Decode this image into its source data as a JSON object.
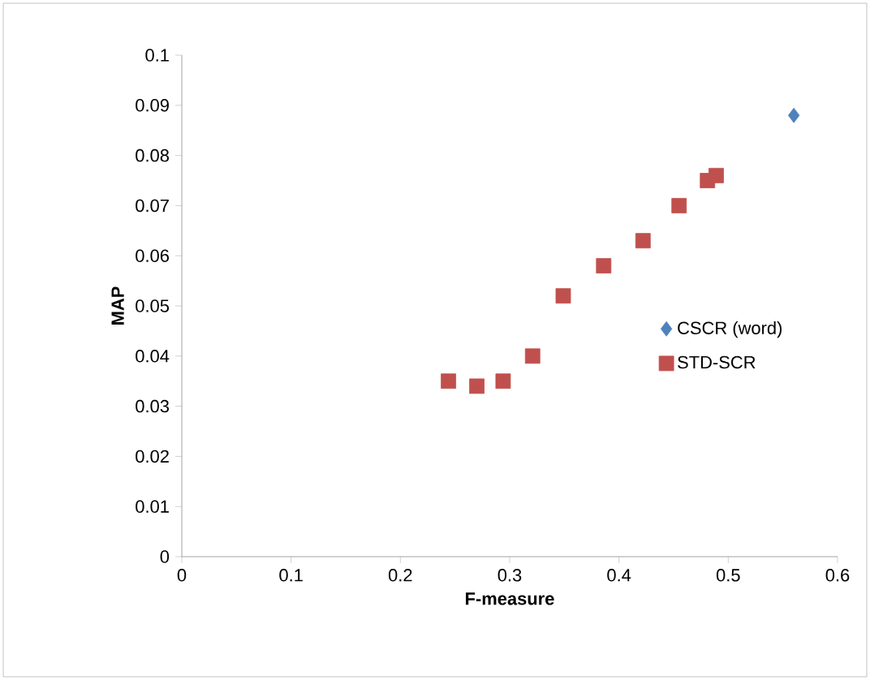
{
  "chart_data": {
    "type": "scatter",
    "xlabel": "F-measure",
    "ylabel": "MAP",
    "xlim": [
      0,
      0.6
    ],
    "ylim": [
      0,
      0.1
    ],
    "xticks": [
      0,
      0.1,
      0.2,
      0.3,
      0.4,
      0.5,
      0.6
    ],
    "yticks": [
      0,
      0.01,
      0.02,
      0.03,
      0.04,
      0.05,
      0.06,
      0.07,
      0.08,
      0.09,
      0.1
    ],
    "grid": false,
    "legend": "right",
    "series": [
      {
        "name": "CSCR (word)",
        "color": "#4f81bd",
        "marker": "diamond",
        "x": [
          0.56
        ],
        "values": [
          0.088
        ]
      },
      {
        "name": "STD-SCR",
        "color": "#c0504d",
        "marker": "square",
        "x": [
          0.244,
          0.27,
          0.294,
          0.321,
          0.349,
          0.386,
          0.422,
          0.455,
          0.481,
          0.489
        ],
        "values": [
          0.035,
          0.034,
          0.035,
          0.04,
          0.052,
          0.058,
          0.063,
          0.07,
          0.075,
          0.076
        ]
      }
    ]
  }
}
